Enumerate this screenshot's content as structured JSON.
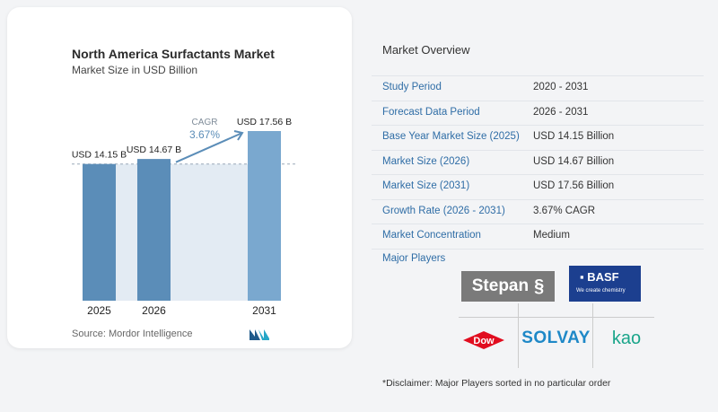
{
  "title": "North America Surfactants Market",
  "subtitle": "Market Size in USD Billion",
  "source": "Source:  Mordor Intelligence",
  "chart_data": {
    "type": "bar",
    "title": "North America Surfactants Market",
    "subtitle": "Market Size in USD Billion",
    "categories": [
      "2025",
      "2026",
      "2031"
    ],
    "values": [
      14.15,
      14.67,
      17.56
    ],
    "value_labels": [
      "USD 14.15 B",
      "USD 14.67 B",
      "USD 17.56 B"
    ],
    "annotation": {
      "label": "CAGR",
      "value": "3.67%"
    },
    "xlabel": "",
    "ylabel": "",
    "grid": false,
    "colors": {
      "bar": "#5b8db8",
      "bar_light": "#7aa8cf",
      "band": "#e3ebf3",
      "arrow": "#5b8db8"
    }
  },
  "overview": {
    "title": "Market Overview",
    "rows": [
      {
        "label": "Study Period",
        "value": "2020 - 2031"
      },
      {
        "label": "Forecast Data Period",
        "value": "2026 - 2031"
      },
      {
        "label": "Base Year Market Size (2025)",
        "value": "USD 14.15 Billion"
      },
      {
        "label": "Market Size (2026)",
        "value": "USD 14.67 Billion"
      },
      {
        "label": "Market Size (2031)",
        "value": "USD 17.56 Billion"
      },
      {
        "label": "Growth Rate (2026 - 2031)",
        "value": "3.67% CAGR"
      },
      {
        "label": "Market Concentration",
        "value": "Medium"
      }
    ],
    "players_title": "Major Players",
    "players": {
      "stepan": "Stepan",
      "basf": "BASF",
      "basf_tagline": "We create chemistry",
      "dow": "Dow",
      "solvay": "SOLVAY",
      "kao": "kao"
    },
    "disclaimer": "*Disclaimer: Major Players sorted in no particular order"
  }
}
